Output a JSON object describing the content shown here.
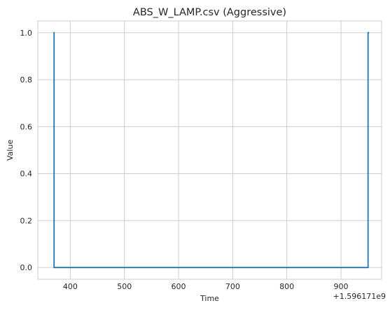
{
  "chart_data": {
    "type": "line",
    "title": "ABS_W_LAMP.csv (Aggressive)",
    "xlabel": "Time",
    "ylabel": "Value",
    "x_offset_label": "+1.596171e9",
    "xlim": [
      340,
      975
    ],
    "ylim": [
      -0.05,
      1.05
    ],
    "x_ticks": [
      400,
      500,
      600,
      700,
      800,
      900
    ],
    "x_tick_labels": [
      "400",
      "500",
      "600",
      "700",
      "800",
      "900"
    ],
    "y_ticks": [
      0.0,
      0.2,
      0.4,
      0.6,
      0.8,
      1.0
    ],
    "y_tick_labels": [
      "0.0",
      "0.2",
      "0.4",
      "0.6",
      "0.8",
      "1.0"
    ],
    "grid": true,
    "line_color": "#1f77b4",
    "series": [
      {
        "x": [
          369,
          370,
          370,
          950,
          950,
          952
        ],
        "y": [
          1,
          1,
          0,
          0,
          1,
          1
        ]
      }
    ]
  }
}
